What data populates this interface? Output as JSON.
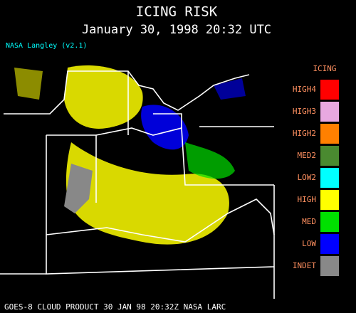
{
  "header": {
    "title": "ICING RISK",
    "subtitle": "January 30, 1998 20:32 UTC",
    "source": "NASA Langley (v2.1)"
  },
  "legend": {
    "title": "ICING",
    "items": [
      {
        "label": "HIGH4",
        "color": "#ff0000"
      },
      {
        "label": "HIGH3",
        "color": "#e8a8e0"
      },
      {
        "label": "HIGH2",
        "color": "#ff8000"
      },
      {
        "label": "MED2",
        "color": "#4a8a30"
      },
      {
        "label": "LOW2",
        "color": "#00ffff"
      },
      {
        "label": "HIGH",
        "color": "#ffff00"
      },
      {
        "label": "MED",
        "color": "#00e000"
      },
      {
        "label": "LOW",
        "color": "#0000ff"
      },
      {
        "label": "INDET",
        "color": "#888888"
      }
    ]
  },
  "footer": {
    "text": "GOES-8 CLOUD PRODUCT   30 JAN 98 20:32Z NASA LARC"
  }
}
